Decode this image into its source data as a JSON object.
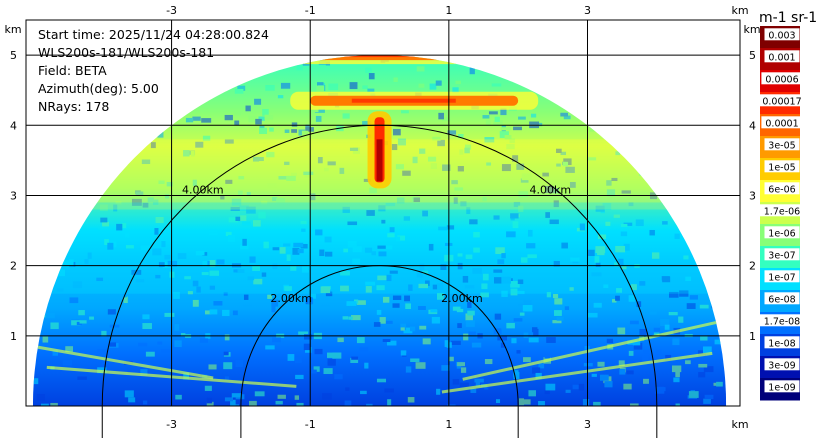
{
  "info": {
    "start_time": "Start time: 2025/11/24 04:28:00.824",
    "instrument": "WLS200s-181/WLS200s-181",
    "field": "Field: BETA",
    "azimuth": "Azimuth(deg): 5.00",
    "nrays": "NRays: 178"
  },
  "colorbar": {
    "units_label": "m-1 sr-1",
    "tick_labels": [
      "0.003",
      "0.001",
      "0.0006",
      "0.00017",
      "0.0001",
      "3e-05",
      "1e-05",
      "6e-06",
      "1.7e-06",
      "1e-06",
      "3e-07",
      "1e-07",
      "6e-08",
      "1.7e-08",
      "1e-08",
      "3e-09",
      "1e-09"
    ],
    "colors": [
      "#7f0000",
      "#b00000",
      "#e00000",
      "#ff2a00",
      "#ff6600",
      "#ff9a00",
      "#ffcc00",
      "#ffff33",
      "#ccff4d",
      "#88ff77",
      "#33ffc0",
      "#00e0ff",
      "#00a8ff",
      "#0070ff",
      "#0040e0",
      "#0010b0",
      "#00007a"
    ]
  },
  "chart_data": {
    "type": "heatmap",
    "title": "",
    "plot_kind": "RHI radar/lidar plot, half-circle sector of backscatter (BETA)",
    "xlabel": "km",
    "ylabel": "km",
    "x_unit_label": "km",
    "y_unit_label": "km",
    "xlim": [
      -5.1,
      5.2
    ],
    "ylim": [
      0,
      5.5
    ],
    "x_ticks": [
      -3,
      -1,
      1,
      3
    ],
    "y_ticks": [
      1,
      2,
      3,
      4,
      5
    ],
    "range_rings_km": [
      2.0,
      4.0
    ],
    "ring_labels": [
      "2.00km",
      "4.00km"
    ],
    "max_range_km": 5.0,
    "grid": true,
    "features": [
      {
        "name": "strong layer",
        "altitude_km": 5.0,
        "x_range_km": [
          -2.0,
          1.8
        ],
        "level": "3e-05 to 0.0001"
      },
      {
        "name": "strong layer",
        "altitude_km": 4.35,
        "x_range_km": [
          -1.0,
          2.0
        ],
        "level": "3e-05 to 0.0001"
      },
      {
        "name": "vertical peak",
        "x_km": 0.0,
        "altitude_range_km": [
          3.1,
          4.2
        ],
        "level": "0.0001 to 0.001"
      },
      {
        "name": "enhanced band",
        "altitude_range_km": [
          2.8,
          3.8
        ],
        "level": "1e-05 to 3e-05"
      },
      {
        "name": "low-level band",
        "altitude_range_km": [
          1.6,
          2.9
        ],
        "level": "3e-07 to 1e-06"
      },
      {
        "name": "near field",
        "altitude_range_km": [
          0,
          1.6
        ],
        "level": "1e-08 to 1e-07"
      }
    ]
  }
}
